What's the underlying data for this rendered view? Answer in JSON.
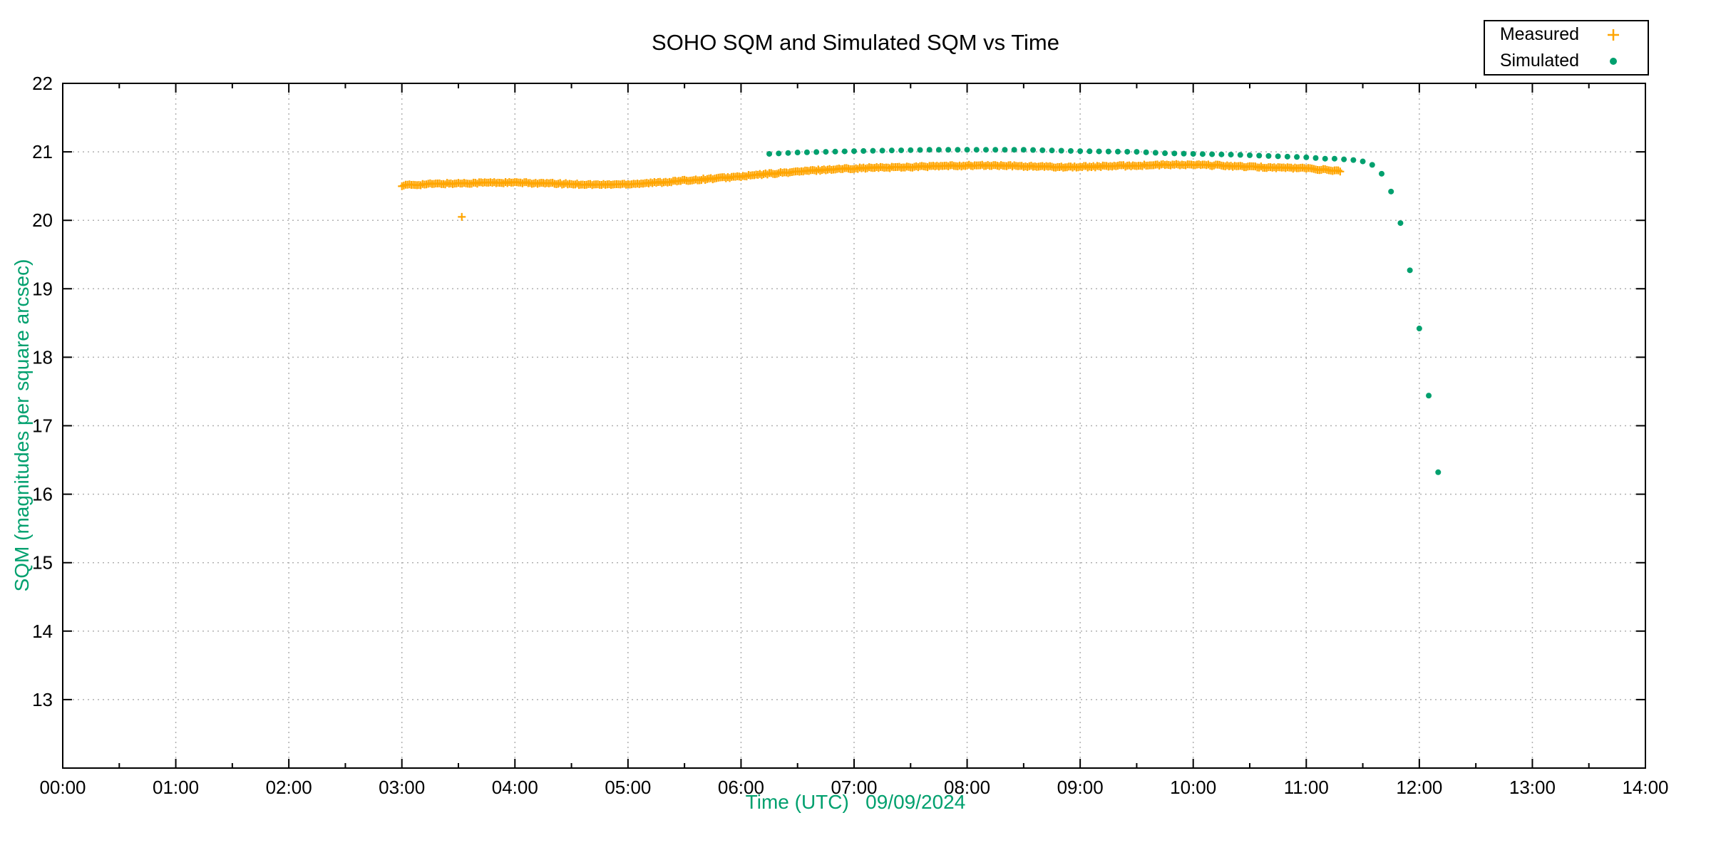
{
  "chart_data": {
    "type": "scatter",
    "title": "SOHO SQM and Simulated SQM vs Time",
    "xlabel": "Time (UTC)   09/09/2024",
    "ylabel": "SQM (magnitudes per square arcsec)",
    "axis_label_color": "#00a06e",
    "background_color": "#ffffff",
    "x_axis": {
      "unit": "hours UTC",
      "min": 0,
      "max": 14,
      "major_tick": 1,
      "minor_tick": 0.5,
      "tick_labels": [
        "00:00",
        "01:00",
        "02:00",
        "03:00",
        "04:00",
        "05:00",
        "06:00",
        "07:00",
        "08:00",
        "09:00",
        "10:00",
        "11:00",
        "12:00",
        "13:00",
        "14:00"
      ]
    },
    "y_axis": {
      "min": 12,
      "max": 22,
      "major_tick": 1,
      "tick_values": [
        13,
        14,
        15,
        16,
        17,
        18,
        19,
        20,
        21,
        22
      ],
      "tick_labels": [
        "13",
        "14",
        "15",
        "16",
        "17",
        "18",
        "19",
        "20",
        "21",
        "22"
      ]
    },
    "grid": {
      "show": true,
      "color": "#b0b0b0",
      "style": "dotted"
    },
    "legend": {
      "position": "top-right",
      "entries": [
        {
          "label": "Measured",
          "marker": "plus",
          "color": "#ffa500"
        },
        {
          "label": "Simulated",
          "marker": "dot",
          "color": "#00a06e"
        }
      ]
    },
    "series": [
      {
        "name": "Measured",
        "marker": "plus",
        "color": "#ffa500",
        "cadence_minutes": 1,
        "start_hour": 3.0,
        "end_hour": 11.3,
        "scatter_amplitude": 0.012,
        "anchor_points": [
          [
            3.0,
            20.51
          ],
          [
            3.25,
            20.53
          ],
          [
            3.5,
            20.54
          ],
          [
            3.75,
            20.55
          ],
          [
            4.0,
            20.55
          ],
          [
            4.25,
            20.54
          ],
          [
            4.5,
            20.53
          ],
          [
            4.75,
            20.52
          ],
          [
            5.0,
            20.53
          ],
          [
            5.25,
            20.55
          ],
          [
            5.5,
            20.58
          ],
          [
            5.75,
            20.61
          ],
          [
            6.0,
            20.64
          ],
          [
            6.25,
            20.68
          ],
          [
            6.5,
            20.71
          ],
          [
            6.75,
            20.74
          ],
          [
            7.0,
            20.76
          ],
          [
            7.25,
            20.77
          ],
          [
            7.5,
            20.78
          ],
          [
            7.75,
            20.79
          ],
          [
            8.0,
            20.8
          ],
          [
            8.25,
            20.8
          ],
          [
            8.5,
            20.79
          ],
          [
            8.75,
            20.78
          ],
          [
            9.0,
            20.78
          ],
          [
            9.25,
            20.79
          ],
          [
            9.5,
            20.8
          ],
          [
            9.75,
            20.81
          ],
          [
            10.0,
            20.81
          ],
          [
            10.25,
            20.8
          ],
          [
            10.5,
            20.78
          ],
          [
            10.75,
            20.77
          ],
          [
            11.0,
            20.76
          ],
          [
            11.3,
            20.72
          ]
        ],
        "outlier_points": [
          [
            3.53,
            20.05
          ]
        ]
      },
      {
        "name": "Simulated",
        "marker": "dot",
        "color": "#00a06e",
        "cadence_minutes": 5,
        "start_hour": 6.25,
        "end_hour": 12.1667,
        "anchor_points": [
          [
            6.25,
            20.97
          ],
          [
            6.5,
            20.99
          ],
          [
            6.75,
            21.0
          ],
          [
            7.0,
            21.01
          ],
          [
            7.3333,
            21.02
          ],
          [
            7.6667,
            21.03
          ],
          [
            8.5,
            21.03
          ],
          [
            8.75,
            21.02
          ],
          [
            9.0,
            21.01
          ],
          [
            9.5,
            21.0
          ],
          [
            9.75,
            20.98
          ],
          [
            10.0,
            20.97
          ],
          [
            10.3333,
            20.96
          ],
          [
            10.6667,
            20.94
          ],
          [
            11.0,
            20.92
          ],
          [
            11.0833,
            20.91
          ],
          [
            11.1667,
            20.9
          ],
          [
            11.25,
            20.9
          ],
          [
            11.3333,
            20.89
          ],
          [
            11.4167,
            20.88
          ],
          [
            11.5,
            20.86
          ],
          [
            11.5833,
            20.81
          ],
          [
            11.6667,
            20.68
          ],
          [
            11.75,
            20.42
          ],
          [
            11.8333,
            19.96
          ],
          [
            11.9167,
            19.27
          ],
          [
            12.0,
            18.42
          ],
          [
            12.0833,
            17.44
          ],
          [
            12.1667,
            16.32
          ]
        ]
      }
    ]
  }
}
